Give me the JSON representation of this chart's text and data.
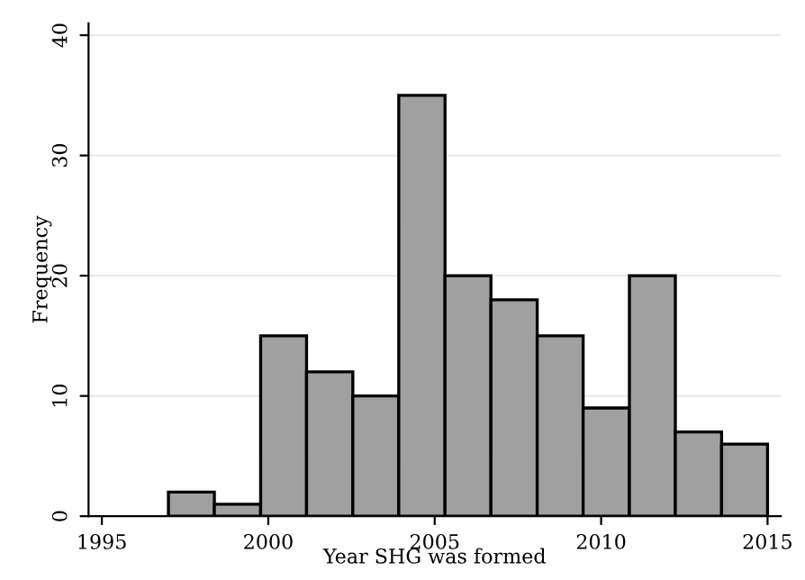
{
  "chart_data": {
    "type": "histogram",
    "xlabel": "Year SHG was formed",
    "ylabel": "Frequency",
    "bins": [
      1997,
      1998.38,
      1999.77,
      2001.15,
      2002.54,
      2003.92,
      2005.31,
      2006.69,
      2008.08,
      2009.46,
      2010.85,
      2012.23,
      2013.62,
      2015
    ],
    "values": [
      2,
      1,
      15,
      12,
      10,
      35,
      20,
      18,
      15,
      9,
      20,
      7,
      6
    ],
    "color": "#a0a0a0",
    "xlim": [
      1994.6,
      2015.4
    ],
    "xticks": [
      1995,
      2000,
      2005,
      2010,
      2015
    ],
    "ylim": [
      0,
      41
    ],
    "yticks": [
      0,
      10,
      20,
      30,
      40
    ],
    "grid": "y"
  }
}
